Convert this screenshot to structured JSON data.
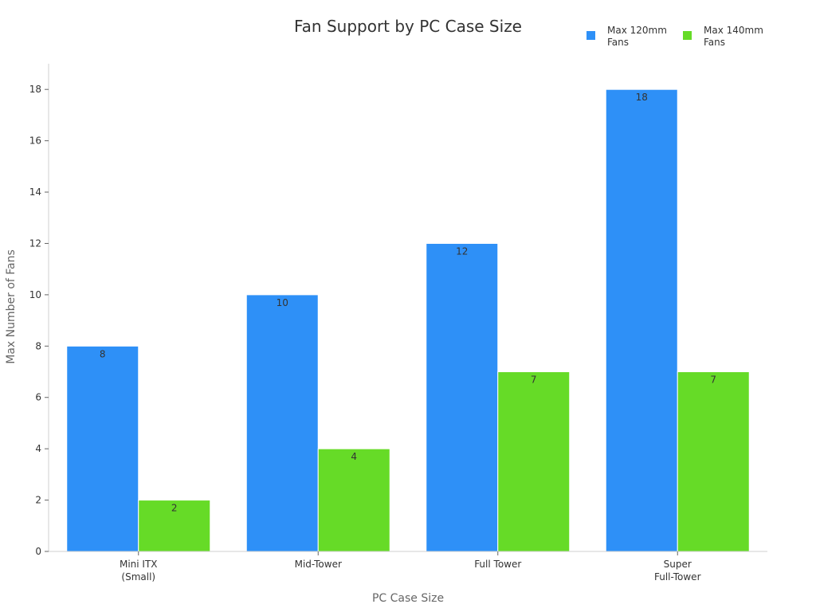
{
  "chart_data": {
    "type": "bar",
    "title": "Fan Support by PC Case Size",
    "xlabel": "PC Case Size",
    "ylabel": "Max Number of Fans",
    "categories": [
      [
        "Mini ITX",
        "(Small)"
      ],
      [
        "Mid-Tower"
      ],
      [
        "Full Tower"
      ],
      [
        "Super",
        "Full-Tower"
      ]
    ],
    "series": [
      {
        "name": [
          "Max 120mm",
          "Fans"
        ],
        "color": "#2E90F7",
        "values": [
          8,
          10,
          12,
          18
        ]
      },
      {
        "name": [
          "Max 140mm",
          "Fans"
        ],
        "color": "#66DB27",
        "values": [
          2,
          4,
          7,
          7
        ]
      }
    ],
    "ylim": [
      0,
      19
    ],
    "yticks": [
      0,
      2,
      4,
      6,
      8,
      10,
      12,
      14,
      16,
      18
    ],
    "grid": false,
    "legend_position": "top-right",
    "data_labels": true
  }
}
